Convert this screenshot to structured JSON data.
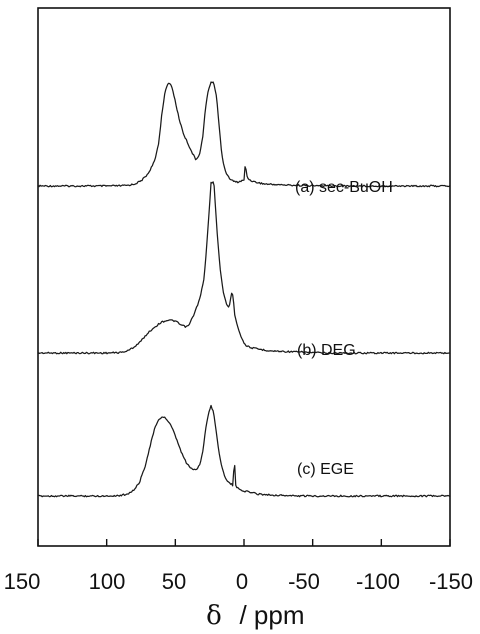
{
  "chart_data": {
    "type": "line",
    "title": "",
    "xlabel_symbol": "δ",
    "xlabel_unit": "/ ppm",
    "xlim": [
      150,
      -150
    ],
    "x_reversed": true,
    "y_shown": false,
    "grid": false,
    "ticks": [
      150,
      100,
      50,
      0,
      -50,
      -100,
      -150
    ],
    "series": [
      {
        "name": "(a) sec-BuOH",
        "baseline": 0,
        "points": [
          [
            150,
            0
          ],
          [
            120,
            0
          ],
          [
            100,
            0
          ],
          [
            90,
            0.2
          ],
          [
            85,
            0.6
          ],
          [
            80,
            1.8
          ],
          [
            75,
            5
          ],
          [
            70,
            12
          ],
          [
            65,
            25
          ],
          [
            62,
            44
          ],
          [
            60,
            70
          ],
          [
            58,
            90
          ],
          [
            56,
            101
          ],
          [
            54,
            103
          ],
          [
            52,
            97
          ],
          [
            50,
            84
          ],
          [
            47,
            66
          ],
          [
            44,
            52
          ],
          [
            41,
            43
          ],
          [
            38,
            34
          ],
          [
            35,
            26
          ],
          [
            32,
            33
          ],
          [
            30,
            50
          ],
          [
            28,
            78
          ],
          [
            26,
            96
          ],
          [
            24,
            104
          ],
          [
            22,
            103
          ],
          [
            20,
            90
          ],
          [
            18,
            58
          ],
          [
            16,
            30
          ],
          [
            14,
            17
          ],
          [
            12,
            10
          ],
          [
            10,
            7
          ],
          [
            8,
            5
          ],
          [
            6,
            4
          ],
          [
            4,
            4
          ],
          [
            2,
            5
          ],
          [
            0,
            6
          ],
          [
            -1,
            23
          ],
          [
            -2,
            10
          ],
          [
            -4,
            6
          ],
          [
            -8,
            4
          ],
          [
            -15,
            2
          ],
          [
            -30,
            1
          ],
          [
            -60,
            0
          ],
          [
            -100,
            0
          ],
          [
            -150,
            0
          ]
        ]
      },
      {
        "name": "(b) DEG",
        "baseline": 0,
        "points": [
          [
            150,
            0
          ],
          [
            120,
            0
          ],
          [
            100,
            0
          ],
          [
            90,
            0.5
          ],
          [
            85,
            2
          ],
          [
            80,
            6
          ],
          [
            75,
            12
          ],
          [
            70,
            20
          ],
          [
            65,
            26
          ],
          [
            60,
            31
          ],
          [
            55,
            33
          ],
          [
            50,
            32
          ],
          [
            46,
            28
          ],
          [
            42,
            26
          ],
          [
            40,
            28
          ],
          [
            36,
            40
          ],
          [
            32,
            55
          ],
          [
            29,
            75
          ],
          [
            27,
            110
          ],
          [
            25,
            150
          ],
          [
            24,
            170
          ],
          [
            22,
            172
          ],
          [
            21,
            150
          ],
          [
            19,
            110
          ],
          [
            17,
            80
          ],
          [
            15,
            60
          ],
          [
            13,
            50
          ],
          [
            11,
            45
          ],
          [
            9,
            60
          ],
          [
            8,
            58
          ],
          [
            7,
            40
          ],
          [
            6,
            34
          ],
          [
            4,
            24
          ],
          [
            2,
            16
          ],
          [
            0,
            10
          ],
          [
            -2,
            7
          ],
          [
            -6,
            5
          ],
          [
            -10,
            4
          ],
          [
            -20,
            2
          ],
          [
            -40,
            1
          ],
          [
            -60,
            0
          ],
          [
            -100,
            0
          ],
          [
            -150,
            0
          ]
        ]
      },
      {
        "name": "(c) EGE",
        "baseline": 0,
        "points": [
          [
            150,
            0
          ],
          [
            120,
            0
          ],
          [
            100,
            0
          ],
          [
            90,
            0.5
          ],
          [
            85,
            2
          ],
          [
            80,
            6
          ],
          [
            76,
            14
          ],
          [
            72,
            30
          ],
          [
            68,
            52
          ],
          [
            65,
            68
          ],
          [
            62,
            76
          ],
          [
            60,
            79
          ],
          [
            58,
            79
          ],
          [
            56,
            76
          ],
          [
            53,
            70
          ],
          [
            50,
            60
          ],
          [
            46,
            45
          ],
          [
            42,
            33
          ],
          [
            38,
            27
          ],
          [
            35,
            26
          ],
          [
            32,
            32
          ],
          [
            30,
            45
          ],
          [
            28,
            66
          ],
          [
            26,
            82
          ],
          [
            24,
            90
          ],
          [
            22,
            83
          ],
          [
            20,
            62
          ],
          [
            18,
            42
          ],
          [
            16,
            28
          ],
          [
            14,
            20
          ],
          [
            12,
            15
          ],
          [
            10,
            12
          ],
          [
            9,
            12
          ],
          [
            8,
            10
          ],
          [
            7,
            38
          ],
          [
            6,
            10
          ],
          [
            4,
            7
          ],
          [
            0,
            5
          ],
          [
            -4,
            4
          ],
          [
            -10,
            2
          ],
          [
            -20,
            1
          ],
          [
            -40,
            0
          ],
          [
            -100,
            0
          ],
          [
            -150,
            0
          ]
        ]
      }
    ]
  }
}
